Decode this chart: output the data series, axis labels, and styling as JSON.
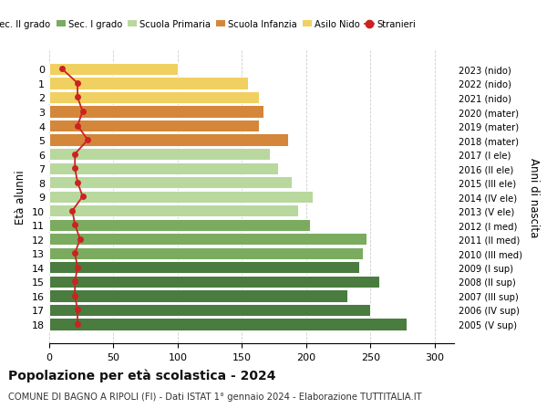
{
  "ages": [
    18,
    17,
    16,
    15,
    14,
    13,
    12,
    11,
    10,
    9,
    8,
    7,
    6,
    5,
    4,
    3,
    2,
    1,
    0
  ],
  "years": [
    "2005 (V sup)",
    "2006 (IV sup)",
    "2007 (III sup)",
    "2008 (II sup)",
    "2009 (I sup)",
    "2010 (III med)",
    "2011 (II med)",
    "2012 (I med)",
    "2013 (V ele)",
    "2014 (IV ele)",
    "2015 (III ele)",
    "2016 (II ele)",
    "2017 (I ele)",
    "2018 (mater)",
    "2019 (mater)",
    "2020 (mater)",
    "2021 (nido)",
    "2022 (nido)",
    "2023 (nido)"
  ],
  "bar_values": [
    278,
    250,
    232,
    257,
    241,
    244,
    247,
    203,
    194,
    205,
    189,
    178,
    172,
    186,
    163,
    167,
    163,
    155,
    100
  ],
  "stranieri_values": [
    22,
    22,
    20,
    20,
    22,
    20,
    24,
    20,
    18,
    26,
    22,
    20,
    20,
    30,
    22,
    26,
    22,
    22,
    10
  ],
  "bar_colors": [
    "#4a7c3f",
    "#4a7c3f",
    "#4a7c3f",
    "#4a7c3f",
    "#4a7c3f",
    "#7aab5f",
    "#7aab5f",
    "#7aab5f",
    "#b8d89e",
    "#b8d89e",
    "#b8d89e",
    "#b8d89e",
    "#b8d89e",
    "#d4873a",
    "#d4873a",
    "#d4873a",
    "#f0d060",
    "#f0d060",
    "#f0d060"
  ],
  "legend_labels": [
    "Sec. II grado",
    "Sec. I grado",
    "Scuola Primaria",
    "Scuola Infanzia",
    "Asilo Nido",
    "Stranieri"
  ],
  "legend_colors_list": [
    "#4a7c3f",
    "#7aab5f",
    "#b8d89e",
    "#d4873a",
    "#f0d060",
    "#cc2222"
  ],
  "stranieri_color": "#cc2222",
  "title": "Popolazione per età scolastica - 2024",
  "subtitle": "COMUNE DI BAGNO A RIPOLI (FI) - Dati ISTAT 1° gennaio 2024 - Elaborazione TUTTITALIA.IT",
  "ylabel_left": "Età alunni",
  "ylabel_right": "Anni di nascita",
  "xlim": [
    0,
    315
  ],
  "xticks": [
    0,
    50,
    100,
    150,
    200,
    250,
    300
  ],
  "bg_color": "#ffffff",
  "grid_color": "#cccccc",
  "bar_edge_color": "#ffffff"
}
